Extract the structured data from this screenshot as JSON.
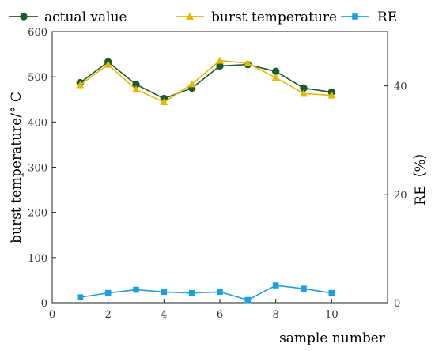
{
  "chart_data": {
    "type": "line",
    "xlabel": "sample number",
    "ylabel": "burst temperature/° C",
    "y2label": "RE（%）",
    "xlim": [
      0,
      12
    ],
    "ylim": [
      0,
      600
    ],
    "y2lim": [
      0,
      50
    ],
    "x_ticks": [
      0,
      2,
      4,
      6,
      8,
      10
    ],
    "y_ticks": [
      0,
      100,
      200,
      300,
      400,
      500,
      600
    ],
    "y2_ticks": [
      0,
      20,
      40
    ],
    "x": [
      1,
      2,
      3,
      4,
      5,
      6,
      7,
      8,
      9,
      10
    ],
    "series": [
      {
        "name": "actual value",
        "axis": "left",
        "marker": "circle",
        "color": "#1a5c2a",
        "values": [
          487,
          533,
          483,
          452,
          475,
          524,
          527,
          512,
          475,
          466
        ]
      },
      {
        "name": "burst temperature",
        "axis": "left",
        "marker": "triangle",
        "color": "#e8b800",
        "values": [
          482,
          527,
          472,
          444,
          484,
          536,
          530,
          498,
          463,
          459
        ]
      },
      {
        "name": "RE",
        "axis": "right",
        "marker": "square",
        "color": "#1a9fe0",
        "values": [
          1.0,
          1.8,
          2.4,
          2.0,
          1.8,
          2.0,
          0.5,
          3.2,
          2.6,
          1.8
        ]
      }
    ],
    "legend_position": "top",
    "grid": false
  }
}
